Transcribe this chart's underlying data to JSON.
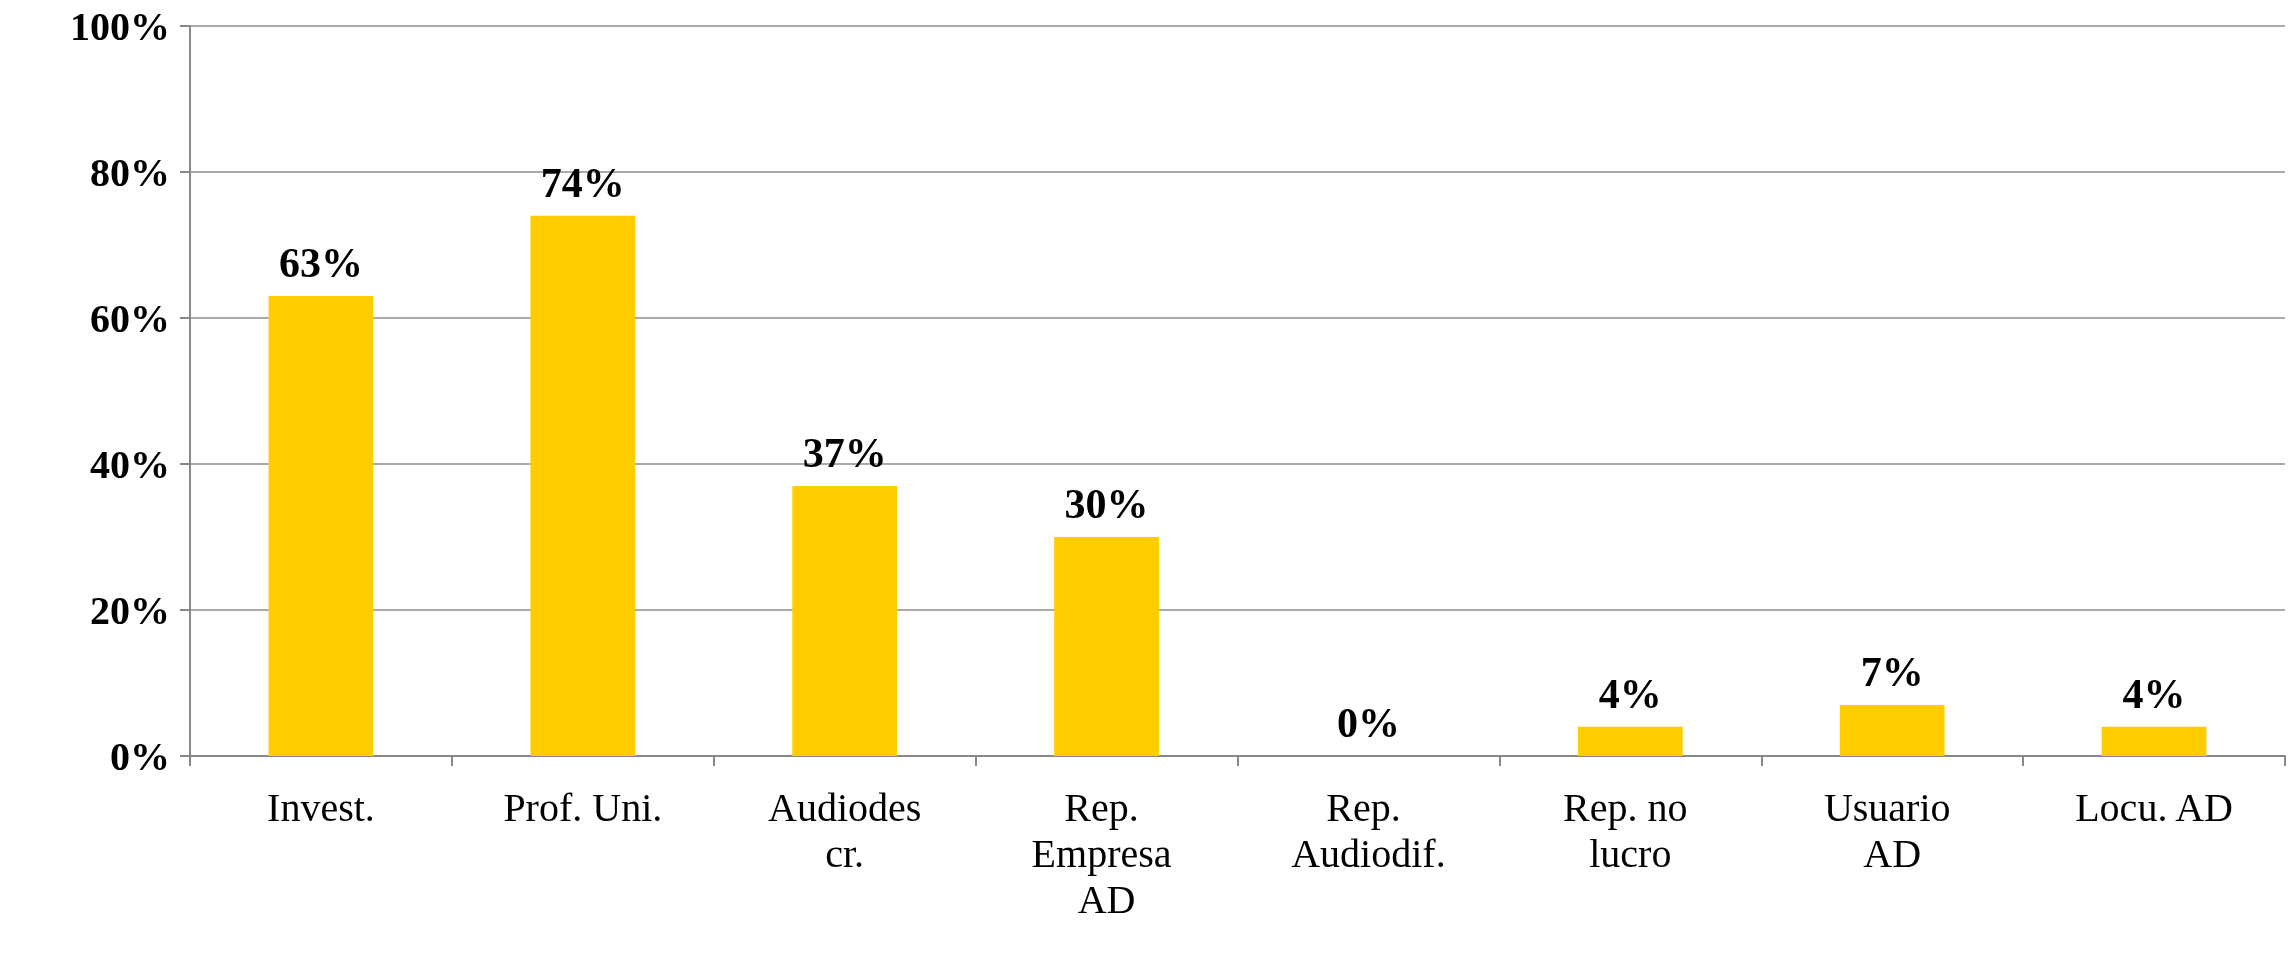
{
  "chart_data": {
    "type": "bar",
    "categories": [
      "Invest.",
      "Prof. Uni.",
      "Audiodescr.",
      "Rep. Empresa AD",
      "Rep. Audiodif.",
      "Rep. no lucro",
      "Usuario AD",
      "Locu. AD"
    ],
    "values": [
      63,
      74,
      37,
      30,
      0,
      4,
      7,
      4
    ],
    "value_labels": [
      "63%",
      "74%",
      "37%",
      "30%",
      "0%",
      "4%",
      "7%",
      "4%"
    ],
    "color": "#ffcc00",
    "ylim": [
      0,
      100
    ],
    "yticks": [
      {
        "value": 0,
        "label": "0%"
      },
      {
        "value": 20,
        "label": "20%"
      },
      {
        "value": 40,
        "label": "40%"
      },
      {
        "value": 60,
        "label": "60%"
      },
      {
        "value": 80,
        "label": "80%"
      },
      {
        "value": 100,
        "label": "100%"
      }
    ],
    "grid": "y"
  }
}
